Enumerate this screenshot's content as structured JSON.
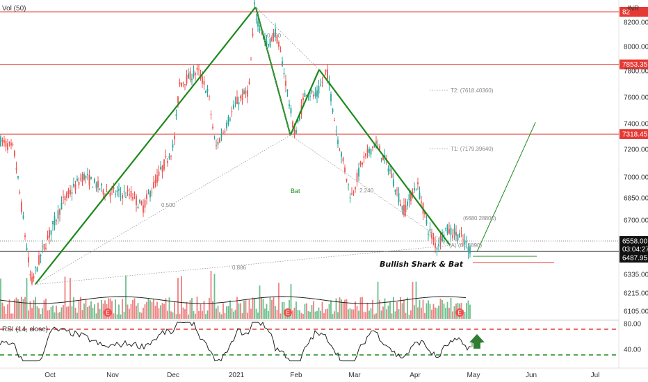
{
  "chart_data": {
    "type": "candlestick",
    "symbol_currency": "INR",
    "price_axis": {
      "ticks": [
        8200,
        8000,
        7800,
        7600,
        7400,
        7200,
        7000,
        6850,
        6700,
        6335,
        6215,
        6105
      ],
      "tick_labels": [
        "8200.00",
        "8000.00",
        "7800.00",
        "7600.00",
        "7400.00",
        "7200.00",
        "7000.00",
        "6850.00",
        "6700.00",
        "6335.00",
        "6215.00",
        "6105.00"
      ]
    },
    "time_axis": {
      "labels": [
        "Oct",
        "Nov",
        "Dec",
        "2021",
        "Feb",
        "Mar",
        "Apr",
        "May",
        "Jun",
        "Jul"
      ]
    },
    "volume_label": "Vol (50)",
    "horizontal_levels": [
      {
        "value": 8245,
        "label": "82",
        "color": "#e53935"
      },
      {
        "value": 7853.35,
        "label": "7853.35",
        "color": "#e53935"
      },
      {
        "value": 7318.45,
        "label": "7318.45",
        "color": "#e53935"
      }
    ],
    "current_price": {
      "value": 6558.0,
      "label": "6558.00",
      "countdown": "03:04:27",
      "color": "#1565c0"
    },
    "last_price_label": {
      "value": 6487.95,
      "label": "6487.95"
    },
    "pattern": {
      "name": "Bat",
      "caption": "Bullish Shark & Bat",
      "ratios": [
        "0.500",
        "0.500",
        "0.886",
        "2.240"
      ],
      "points": [
        {
          "date": "Sep 24",
          "price": 6270
        },
        {
          "date": "Jan 11",
          "price": 8270
        },
        {
          "date": "Jan 29",
          "price": 7310
        },
        {
          "date": "Feb 12",
          "price": 7810
        },
        {
          "date": "Apr 19",
          "price": 6530
        }
      ],
      "projection": [
        {
          "date": "May 3",
          "price": 6490
        },
        {
          "date": "Jun 3",
          "price": 7410
        }
      ]
    },
    "targets": [
      {
        "label": "T2: (7618.40360)",
        "value": 7618.4036
      },
      {
        "label": "T1: (7179.39640)",
        "value": 7179.3964
      },
      {
        "label": "(6680.28800)",
        "value": 6680.288
      },
      {
        "label": "(A) (6...5890)",
        "value": 6590
      }
    ],
    "rsi": {
      "label": "RSI (14, close)",
      "ticks": [
        80.0,
        40.0
      ],
      "tick_labels": [
        "80.00",
        "40.00"
      ],
      "overbought": 70,
      "oversold": 30
    },
    "events_marker": "E",
    "colors": {
      "up": "#26a69a",
      "down": "#ef5350",
      "pattern": "#1b8a1b",
      "level": "#e53935",
      "arrow": "#2e7d32"
    }
  }
}
